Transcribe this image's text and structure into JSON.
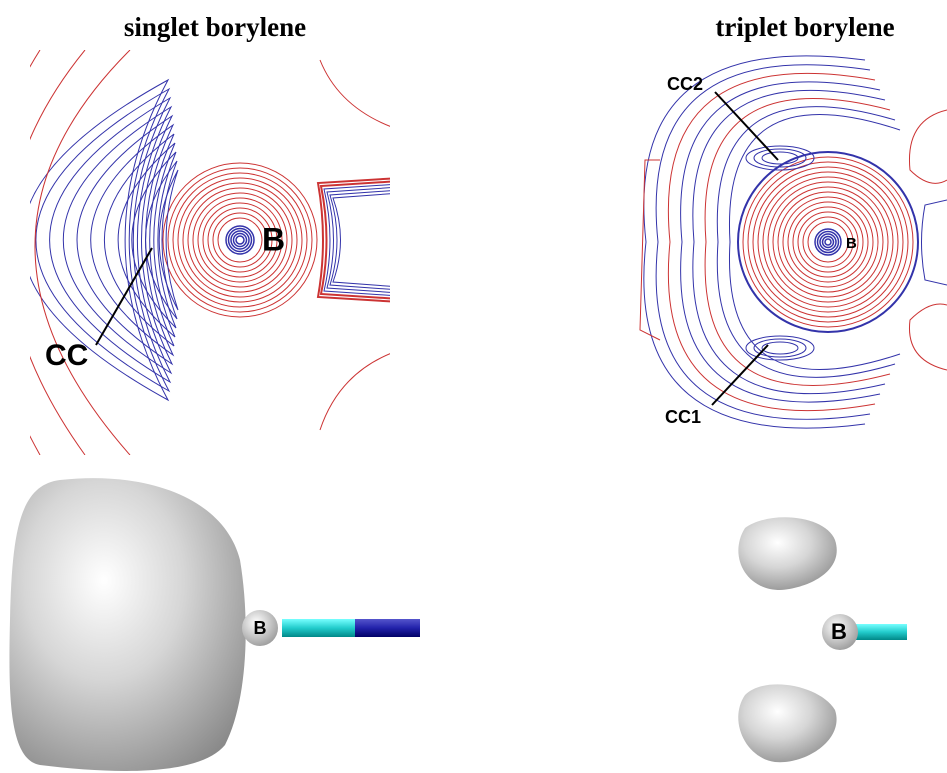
{
  "panels": [
    {
      "title": "singlet borylene",
      "contour_labels": [
        "B",
        "CC"
      ],
      "model_label": "B"
    },
    {
      "title": "triplet borylene",
      "contour_labels": [
        "B",
        "CC2",
        "CC1"
      ],
      "model_label": "B"
    }
  ]
}
